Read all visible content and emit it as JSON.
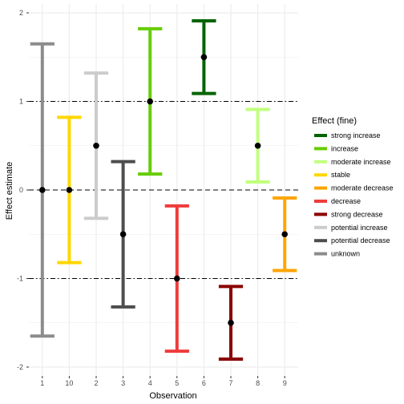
{
  "chart_data": {
    "type": "errorbar",
    "xlabel": "Observation",
    "ylabel": "Effect estimate",
    "ylim": [
      -2.1,
      2.1
    ],
    "yticks": [
      -2,
      -1,
      0,
      1,
      2
    ],
    "ytick_labels": [
      "-2",
      "-1",
      "0",
      "1",
      "2"
    ],
    "reference_lines": [
      {
        "y": 0,
        "style": "dashed"
      },
      {
        "y": 1,
        "style": "dotdash"
      },
      {
        "y": -1,
        "style": "dotdash"
      }
    ],
    "legend_title": "Effect (fine)",
    "legend_position": "right",
    "categories": [
      {
        "key": "strong_increase",
        "label": "strong increase",
        "color": "#006400"
      },
      {
        "key": "increase",
        "label": "increase",
        "color": "#66cd00"
      },
      {
        "key": "moderate_increase",
        "label": "moderate increase",
        "color": "#c1ff7f"
      },
      {
        "key": "stable",
        "label": "stable",
        "color": "#ffd700"
      },
      {
        "key": "moderate_decrease",
        "label": "moderate decrease",
        "color": "#ffa500"
      },
      {
        "key": "decrease",
        "label": "decrease",
        "color": "#ee3b3b"
      },
      {
        "key": "strong_decrease",
        "label": "strong decrease",
        "color": "#8b0000"
      },
      {
        "key": "potential_increase",
        "label": "potential increase",
        "color": "#cccccc"
      },
      {
        "key": "potential_decrease",
        "label": "potential decrease",
        "color": "#4d4d4d"
      },
      {
        "key": "unknown",
        "label": "unknown",
        "color": "#8c8c8c"
      }
    ],
    "observations": [
      {
        "x": "1",
        "estimate": 0.0,
        "lower": -1.65,
        "upper": 1.65,
        "category": "unknown"
      },
      {
        "x": "10",
        "estimate": 0.0,
        "lower": -0.82,
        "upper": 0.82,
        "category": "stable"
      },
      {
        "x": "2",
        "estimate": 0.5,
        "lower": -0.32,
        "upper": 1.32,
        "category": "potential_increase"
      },
      {
        "x": "3",
        "estimate": -0.5,
        "lower": -1.32,
        "upper": 0.32,
        "category": "potential_decrease"
      },
      {
        "x": "4",
        "estimate": 1.0,
        "lower": 0.18,
        "upper": 1.82,
        "category": "increase"
      },
      {
        "x": "5",
        "estimate": -1.0,
        "lower": -1.82,
        "upper": -0.18,
        "category": "decrease"
      },
      {
        "x": "6",
        "estimate": 1.5,
        "lower": 1.09,
        "upper": 1.91,
        "category": "strong_increase"
      },
      {
        "x": "7",
        "estimate": -1.5,
        "lower": -1.91,
        "upper": -1.09,
        "category": "strong_decrease"
      },
      {
        "x": "8",
        "estimate": 0.5,
        "lower": 0.09,
        "upper": 0.91,
        "category": "moderate_increase"
      },
      {
        "x": "9",
        "estimate": -0.5,
        "lower": -0.91,
        "upper": -0.09,
        "category": "moderate_decrease"
      }
    ]
  }
}
